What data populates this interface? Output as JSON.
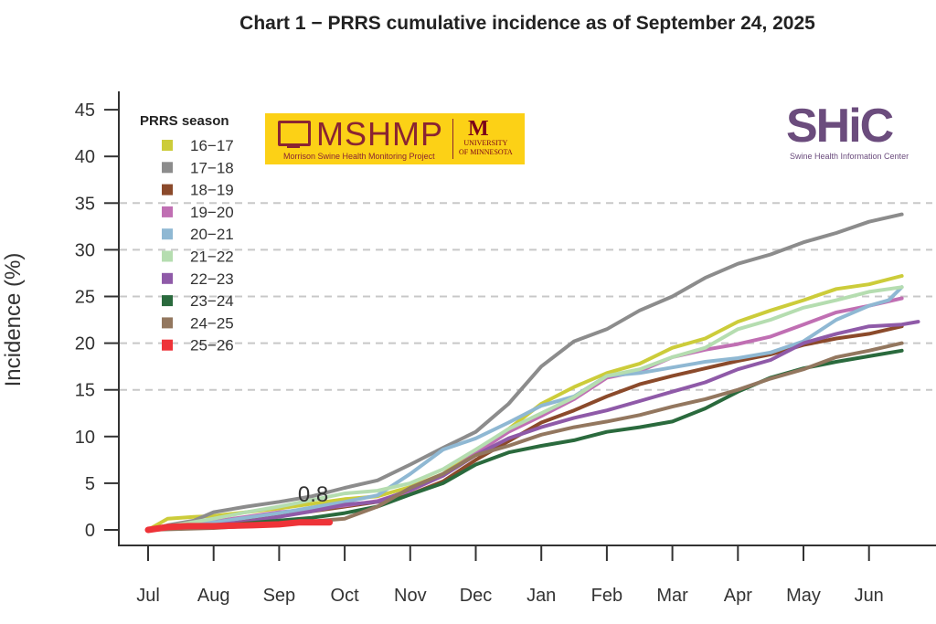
{
  "chart_data": {
    "type": "line",
    "title": "Chart 1 − PRRS cumulative incidence as of September 24, 2025",
    "xlabel": "",
    "ylabel": "Incidence (%)",
    "ylim": [
      0,
      45
    ],
    "yticks": [
      0,
      5,
      10,
      15,
      20,
      25,
      30,
      35,
      40,
      45
    ],
    "gridlines_y": [
      15,
      20,
      25,
      30,
      35
    ],
    "grid": "dashed horizontal",
    "x_tick_labels": [
      "Jul",
      "Aug",
      "Sep",
      "Oct",
      "Nov",
      "Dec",
      "Jan",
      "Feb",
      "Mar",
      "Apr",
      "May",
      "Jun"
    ],
    "x_unit": "months since July 1",
    "legend_title": "PRRS season",
    "legend_position": "top-left",
    "annotation": "0.8",
    "series": [
      {
        "name": "16−17",
        "color": "#cccc3a",
        "x": [
          0,
          0.3,
          0.7,
          1,
          1.5,
          2,
          2.5,
          3,
          3.5,
          4,
          4.5,
          5,
          5.5,
          6,
          6.5,
          7,
          7.5,
          8,
          8.5,
          9,
          9.5,
          10,
          10.5,
          11,
          11.5
        ],
        "values": [
          0,
          1.2,
          1.4,
          1.5,
          1.9,
          2.3,
          2.8,
          3.3,
          3.6,
          4.6,
          6.0,
          8.5,
          10.8,
          13.5,
          15.3,
          16.8,
          17.8,
          19.5,
          20.5,
          22.3,
          23.5,
          24.6,
          25.8,
          26.3,
          27.2
        ]
      },
      {
        "name": "17−18",
        "color": "#8c8c8c",
        "x": [
          0,
          0.3,
          0.7,
          1,
          1.5,
          2,
          2.5,
          3,
          3.5,
          4,
          4.5,
          5,
          5.5,
          6,
          6.5,
          7,
          7.5,
          8,
          8.5,
          9,
          9.5,
          10,
          10.5,
          11,
          11.5
        ],
        "values": [
          0,
          0.5,
          1,
          1.9,
          2.5,
          3.0,
          3.6,
          4.5,
          5.3,
          7.0,
          8.8,
          10.5,
          13.5,
          17.5,
          20.2,
          21.5,
          23.5,
          25,
          27,
          28.5,
          29.5,
          30.8,
          31.8,
          33,
          33.8
        ]
      },
      {
        "name": "18−19",
        "color": "#8b4a2b",
        "x": [
          0,
          0.5,
          1,
          1.5,
          2,
          2.5,
          3,
          3.5,
          4,
          4.5,
          5,
          5.5,
          6,
          6.5,
          7,
          7.5,
          8,
          8.5,
          9,
          9.5,
          10,
          10.5,
          11,
          11.5
        ],
        "values": [
          0,
          0.3,
          0.7,
          1.2,
          1.6,
          2.0,
          2.5,
          3.0,
          3.8,
          5.2,
          7.5,
          9.5,
          11.5,
          12.8,
          14.3,
          15.6,
          16.5,
          17.3,
          18.1,
          18.8,
          19.8,
          20.5,
          21,
          21.8
        ]
      },
      {
        "name": "19−20",
        "color": "#c06fb3",
        "x": [
          0,
          0.5,
          1,
          1.5,
          2,
          2.5,
          3,
          3.5,
          4,
          4.5,
          5,
          5.5,
          6,
          6.5,
          7,
          7.5,
          8,
          8.5,
          9,
          9.5,
          10,
          10.5,
          11,
          11.5
        ],
        "values": [
          0,
          0.4,
          0.9,
          1.4,
          1.9,
          2.2,
          2.6,
          3.1,
          4.2,
          5.8,
          8.2,
          10.5,
          12.2,
          14,
          16.3,
          17.0,
          18.5,
          19.3,
          19.9,
          20.7,
          22.0,
          23.3,
          24.0,
          24.8
        ]
      },
      {
        "name": "20−21",
        "color": "#8fb8d3",
        "x": [
          0,
          0.5,
          1,
          1.5,
          2,
          2.5,
          3,
          3.5,
          4,
          4.5,
          5,
          5.5,
          6,
          6.5,
          7,
          7.5,
          8,
          8.5,
          9,
          9.5,
          10,
          10.5,
          11,
          11.3,
          11.5
        ],
        "values": [
          0,
          0.4,
          0.8,
          1.3,
          1.8,
          2.4,
          3.0,
          3.7,
          6.0,
          8.6,
          9.8,
          11.5,
          13.3,
          14.3,
          16.5,
          16.8,
          17.4,
          18.0,
          18.4,
          19.0,
          20.2,
          22.5,
          24.0,
          24.6,
          26.0
        ]
      },
      {
        "name": "21−22",
        "color": "#b5ddb0",
        "x": [
          0,
          0.5,
          1,
          1.5,
          2,
          2.5,
          3,
          3.5,
          4,
          4.5,
          5,
          5.5,
          6,
          6.5,
          7,
          7.5,
          8,
          8.5,
          9,
          9.5,
          10,
          10.5,
          11,
          11.5
        ],
        "values": [
          0,
          0.6,
          1.2,
          1.9,
          2.5,
          3.2,
          3.9,
          4.2,
          5.0,
          6.5,
          8.6,
          10.8,
          12.5,
          14.2,
          16.5,
          17.2,
          18.5,
          19.5,
          21.5,
          22.5,
          23.8,
          24.6,
          25.5,
          26.0
        ]
      },
      {
        "name": "22−23",
        "color": "#8f5aa8",
        "x": [
          0,
          0.5,
          1,
          1.5,
          2,
          2.5,
          3,
          3.5,
          4,
          4.5,
          5,
          5.5,
          6,
          6.5,
          7,
          7.5,
          8,
          8.5,
          9,
          9.5,
          10,
          10.5,
          11,
          11.5,
          11.75
        ],
        "values": [
          0,
          0.2,
          0.5,
          0.9,
          1.4,
          2.0,
          2.7,
          3.0,
          4.3,
          5.8,
          8.0,
          9.8,
          11.0,
          12.0,
          12.8,
          13.8,
          14.8,
          15.8,
          17.2,
          18.2,
          20.0,
          21.0,
          21.8,
          22.0,
          22.3
        ]
      },
      {
        "name": "23−24",
        "color": "#2a6a3d",
        "x": [
          0,
          0.5,
          1,
          1.5,
          2,
          2.5,
          3,
          3.5,
          4,
          4.5,
          5,
          5.5,
          6,
          6.5,
          7,
          7.5,
          8,
          8.5,
          9,
          9.5,
          10,
          10.5,
          11,
          11.5
        ],
        "values": [
          0,
          0.2,
          0.4,
          0.7,
          1.0,
          1.3,
          1.8,
          2.5,
          3.8,
          5.0,
          7.0,
          8.3,
          9.0,
          9.6,
          10.5,
          11.0,
          11.6,
          13.0,
          14.8,
          16.3,
          17.3,
          18.0,
          18.6,
          19.2
        ]
      },
      {
        "name": "24−25",
        "color": "#93775f",
        "x": [
          0,
          0.5,
          1,
          1.5,
          2,
          2.5,
          3,
          3.5,
          4,
          4.5,
          5,
          5.5,
          6,
          6.5,
          7,
          7.5,
          8,
          8.5,
          9,
          9.5,
          10,
          10.5,
          11,
          11.5
        ],
        "values": [
          0,
          0.1,
          0.2,
          0.4,
          0.6,
          0.9,
          1.2,
          2.5,
          4.5,
          6.0,
          8.0,
          9.0,
          10.2,
          11.0,
          11.6,
          12.3,
          13.2,
          14.0,
          15.0,
          16.2,
          17.2,
          18.5,
          19.2,
          20.0
        ]
      },
      {
        "name": "25−26",
        "color": "#ee3338",
        "x": [
          0,
          0.3,
          0.6,
          1,
          1.3,
          1.6,
          2,
          2.3,
          2.6,
          2.77
        ],
        "values": [
          0,
          0.3,
          0.4,
          0.4,
          0.45,
          0.5,
          0.6,
          0.8,
          0.8,
          0.8
        ]
      }
    ]
  },
  "logos": {
    "mshmp_name": "MSHMP",
    "mshmp_sub": "Morrison Swine Health Monitoring Project",
    "univ_line1": "UNIVERSITY",
    "univ_line2": "OF MINNESOTA",
    "univ_mark": "M",
    "shic_name": "SHiC",
    "shic_sub": "Swine Health Information Center"
  }
}
